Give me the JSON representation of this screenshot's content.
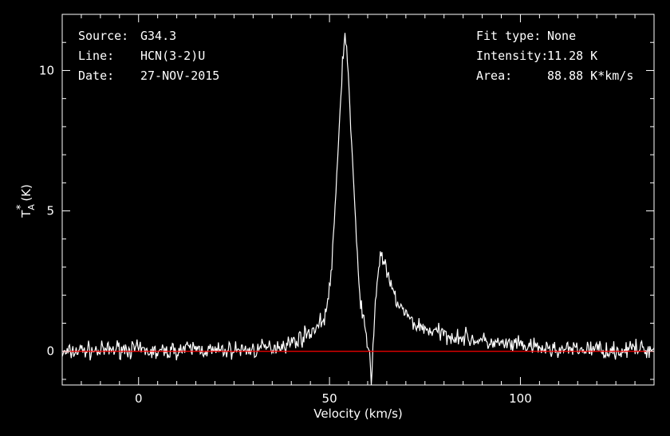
{
  "info_left": {
    "source_label": "Source:",
    "source_value": "G34.3",
    "line_label": "Line:",
    "line_value": "HCN(3-2)U",
    "date_label": "Date:",
    "date_value": "27-NOV-2015"
  },
  "info_right": {
    "fit_label": "Fit type:",
    "fit_value": "None",
    "intensity_label": "Intensity:",
    "intensity_value": "11.28 K",
    "area_label": "Area:",
    "area_value": "88.88 K*km/s"
  },
  "colors": {
    "background": "#000000",
    "frame": "#ffffff",
    "spectrum": "#ffffff",
    "baseline": "#ff0000"
  },
  "chart_data": {
    "type": "line",
    "title": "",
    "xlabel": "Velocity (km/s)",
    "ylabel_main": "T",
    "ylabel_sup": "*",
    "ylabel_sub": "A",
    "ylabel_unit": "(K)",
    "xlim": [
      -20,
      135
    ],
    "ylim": [
      -1.2,
      12.0
    ],
    "xticks": [
      0,
      50,
      100
    ],
    "xtick_labels": [
      "0",
      "50",
      "100"
    ],
    "yticks": [
      0,
      5,
      10
    ],
    "ytick_labels": [
      "0",
      "5",
      "10"
    ],
    "baseline_y": 0,
    "grid": false,
    "series": [
      {
        "x": [
          -20,
          -15,
          -10,
          -5,
          0,
          5,
          10,
          15,
          20,
          25,
          30,
          35,
          40,
          44,
          47,
          49,
          50,
          51,
          52,
          53,
          53.5,
          54,
          54.5,
          55,
          56,
          57,
          58,
          59,
          60,
          60.5,
          61,
          61.5,
          62,
          63,
          63.5,
          64,
          65,
          66,
          68,
          70,
          72,
          75,
          80,
          85,
          90,
          95,
          100,
          105,
          110,
          115,
          120,
          125,
          130,
          135
        ],
        "y": [
          -0.1,
          0.05,
          0.0,
          0.1,
          0.05,
          -0.05,
          0.05,
          0.1,
          0.0,
          0.05,
          0.05,
          0.15,
          0.3,
          0.6,
          0.9,
          1.3,
          2.2,
          3.8,
          6.5,
          9.2,
          10.5,
          11.28,
          10.8,
          9.6,
          6.8,
          4.0,
          2.0,
          1.0,
          0.2,
          -0.2,
          -1.1,
          0.4,
          1.8,
          3.1,
          3.55,
          3.3,
          2.8,
          2.3,
          1.7,
          1.3,
          1.0,
          0.8,
          0.6,
          0.5,
          0.35,
          0.25,
          0.2,
          0.1,
          0.05,
          0.05,
          0.1,
          0.0,
          0.1,
          0.05
        ]
      }
    ]
  }
}
